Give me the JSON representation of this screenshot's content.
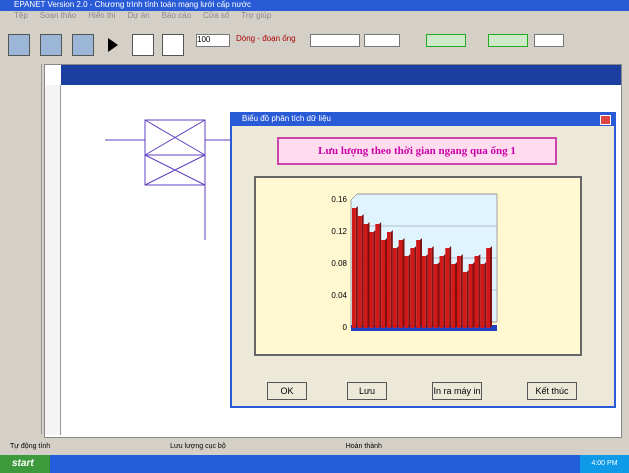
{
  "window": {
    "title": "EPANET Version 2.0 - Chương trình tính toán mạng lưới cấp nước",
    "menu": [
      "Tệp",
      "Soạn thảo",
      "Hiển thị",
      "Dự án",
      "Báo cáo",
      "Cửa sổ",
      "Trợ giúp"
    ]
  },
  "toolbar": {
    "zoom": "100",
    "label": "Dòng - đoạn ống"
  },
  "dialog": {
    "title": "Biểu đồ phân tích dữ liệu",
    "heading": "Lưu lượng theo thời gian ngang qua ống 1",
    "chart": {
      "type": "bar",
      "values": [
        0.15,
        0.14,
        0.13,
        0.12,
        0.13,
        0.11,
        0.12,
        0.1,
        0.11,
        0.09,
        0.1,
        0.11,
        0.09,
        0.1,
        0.08,
        0.09,
        0.1,
        0.08,
        0.09,
        0.07,
        0.08,
        0.09,
        0.08,
        0.1
      ],
      "ylim": [
        0,
        0.16
      ],
      "yticks": [
        0,
        0.04,
        0.08,
        0.12,
        0.16
      ],
      "color": "#d01818"
    },
    "buttons": [
      "OK",
      "Lưu",
      "In ra máy in",
      "Kết thúc"
    ]
  },
  "status": [
    "Tự động tính",
    "Lưu lượng cục bộ",
    "Hoàn thành"
  ],
  "taskbar": {
    "start": "start",
    "time": "4:00 PM"
  }
}
